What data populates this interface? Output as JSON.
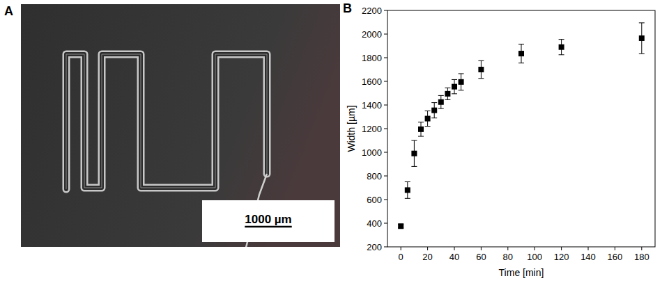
{
  "figure": {
    "panel_a": {
      "label": "A",
      "scale_bar": "1000 µm"
    },
    "panel_b": {
      "label": "B"
    }
  },
  "chart_data": {
    "type": "scatter",
    "x_label": "Time [min]",
    "y_label": "Width [µm]",
    "x": [
      0,
      5,
      10,
      15,
      20,
      25,
      30,
      35,
      40,
      45,
      60,
      90,
      120,
      180
    ],
    "values": [
      375,
      680,
      990,
      1195,
      1285,
      1355,
      1425,
      1495,
      1555,
      1595,
      1700,
      1835,
      1890,
      1965
    ],
    "errors": [
      15,
      70,
      110,
      60,
      65,
      65,
      55,
      50,
      60,
      70,
      75,
      80,
      65,
      130
    ],
    "xlim": [
      -10,
      190
    ],
    "ylim": [
      200,
      2200
    ],
    "xticks": [
      0,
      20,
      40,
      60,
      80,
      100,
      120,
      140,
      160,
      180
    ],
    "yticks": [
      200,
      400,
      600,
      800,
      1000,
      1200,
      1400,
      1600,
      1800,
      2000,
      2200
    ],
    "color": "#000000",
    "marker": "square",
    "grid": false
  }
}
